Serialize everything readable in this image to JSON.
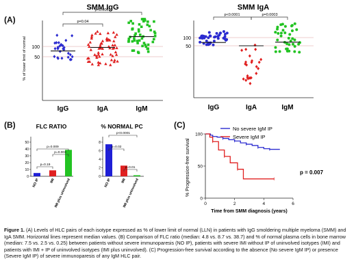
{
  "labels": {
    "A": "(A)",
    "B": "(B)",
    "C": "(C)"
  },
  "ylabel_pct": "% of lower limit of normal",
  "scatter_charts": [
    {
      "title": "SMM IgG",
      "ticks": [
        "100",
        "50"
      ],
      "categories": [
        "IgG",
        "IgA",
        "IgM"
      ],
      "brackets": [
        {
          "label": "p=0.04"
        },
        {
          "label": "p<0.0001"
        }
      ],
      "medians": [
        78,
        95,
        148
      ]
    },
    {
      "title": "SMM IgA",
      "ticks": [
        "100",
        "50"
      ],
      "categories": [
        "IgG",
        "IgA",
        "IgM"
      ],
      "brackets": [
        {
          "label": "p<0.0001"
        },
        {
          "label": "p=0.0003"
        }
      ],
      "medians": [
        70,
        50,
        72
      ]
    }
  ],
  "bar_charts": [
    {
      "title": "FLC RATIO",
      "categories": [
        "NO IP",
        "IMI",
        "IMI plus uninvolved"
      ],
      "values": [
        4.8,
        8.7,
        38.7
      ],
      "colors": [
        "#1f1fd6",
        "#e02020",
        "#22c322"
      ],
      "ylim": [
        0,
        50
      ],
      "ticks": [
        "50",
        "40",
        "30",
        "20",
        "10",
        "0"
      ],
      "brackets": [
        {
          "label": "p=0.009"
        },
        {
          "label": "p=0.003"
        },
        {
          "label": "p=0.19"
        }
      ]
    },
    {
      "title": "% NORMAL PC",
      "categories": [
        "NO IP",
        "IMI",
        "IMI plus uninvolved"
      ],
      "values": [
        7.5,
        2.5,
        0.25
      ],
      "colors": [
        "#1f1fd6",
        "#e02020",
        "#22c322"
      ],
      "ylim": [
        0,
        8
      ],
      "ticks": [
        "8",
        "6",
        "4",
        "2",
        "0"
      ],
      "brackets": [
        {
          "label": "p<0.0001"
        },
        {
          "label": "p=0.02"
        },
        {
          "label": "p=0.01"
        }
      ]
    }
  ],
  "chart_data": {
    "type": "line",
    "ylabel": "% Progression-free survival",
    "xlabel": "Time from SMM diagnosis (years)",
    "xlim": [
      0,
      6
    ],
    "ylim": [
      0,
      100
    ],
    "xticks": [
      "0",
      "2",
      "4",
      "6"
    ],
    "yticks": [
      "100",
      "50",
      "0"
    ],
    "annotation": "p = 0.007",
    "series": [
      {
        "name": "No severe IgM IP",
        "color": "#2b2bd0",
        "x": [
          0,
          0.35,
          0.5,
          0.8,
          1.2,
          1.6,
          2.0,
          2.4,
          2.8,
          3.2,
          3.6,
          4.0,
          4.4,
          5.1
        ],
        "y": [
          100,
          98,
          96,
          95,
          93,
          91,
          89,
          86,
          84,
          82,
          79,
          77,
          76,
          76
        ]
      },
      {
        "name": "Severe IgM IP",
        "color": "#e02020",
        "x": [
          0,
          0.3,
          0.5,
          0.9,
          1.3,
          1.7,
          2.2,
          2.6,
          4.7
        ],
        "y": [
          100,
          95,
          88,
          75,
          65,
          55,
          45,
          30,
          30
        ]
      }
    ]
  },
  "caption": {
    "lead": "Figure 1.",
    "body": " (A) Levels of HLC pairs of each isotype expressed as % of lower limit of normal (LLN) in patients with IgG smoldering multiple myeloma (SMM) and IgA SMM.  Horizontal lines represent median values. (B) Comparison of FLC ratio (median: 4.8 vs. 8.7 vs. 38.7) and % of normal plasma cells in bone marrow (median: 7.5 vs. 2.5 vs. 0.25) between patients without severe immunoparesis (NO IP), patients with severe IMI without IP of uninvolved isotypes (IMI)  and patients with IMI + IP of uninvolved isotypes (IMI plus uninvolved). (C) Progression-free survival according to the absence (No severe IgM IP) or presence (Severe IgM IP) of severe immunoparesis of any IgM HLC pair."
  }
}
